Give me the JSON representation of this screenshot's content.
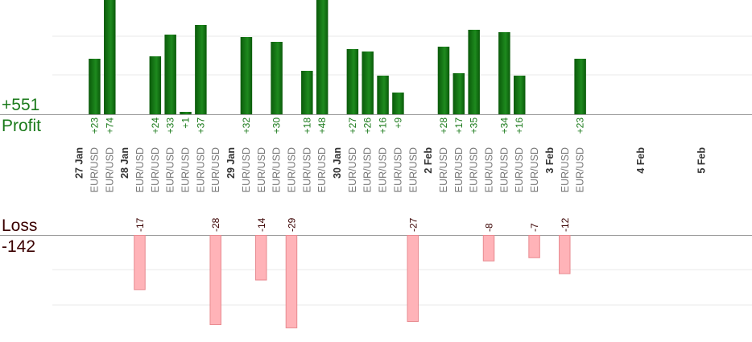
{
  "summary": {
    "profit_total": "+551",
    "profit_label": "Profit",
    "loss_label": "Loss",
    "loss_total": "-142"
  },
  "colors": {
    "profit_bar_dark": "#0a5a0a",
    "profit_bar_light": "#1e8a1e",
    "profit_text": "#1a7a1a",
    "loss_bar": "#ffb3b8",
    "loss_bar_stroke": "#e88a90",
    "loss_text": "#3a0000",
    "axis_line": "#999999",
    "grid_line": "#e8e8e8",
    "date_text": "#333333",
    "pair_text": "#777777"
  },
  "chart_data": {
    "type": "bar",
    "title": "",
    "xlabel": "",
    "ylabel": "",
    "profit_ylim": [
      0,
      60
    ],
    "loss_ylim": [
      -25,
      0
    ],
    "grid": true,
    "date_labels": [
      {
        "label": "27 Jan",
        "index": 0
      },
      {
        "label": "28 Jan",
        "index": 3
      },
      {
        "label": "29 Jan",
        "index": 10
      },
      {
        "label": "30 Jan",
        "index": 17
      },
      {
        "label": "2 Feb",
        "index": 23
      },
      {
        "label": "3 Feb",
        "index": 31
      },
      {
        "label": "4 Feb",
        "index": 37
      },
      {
        "label": "5 Feb",
        "index": 41
      }
    ],
    "trades": [
      {
        "pair": "EUR/USD",
        "value": 23,
        "label": "+23"
      },
      {
        "pair": "EUR/USD",
        "value": 74,
        "label": "+74"
      },
      {
        "pair": "EUR/USD",
        "value": -17,
        "label": "-17"
      },
      {
        "pair": "EUR/USD",
        "value": 24,
        "label": "+24"
      },
      {
        "pair": "EUR/USD",
        "value": 33,
        "label": "+33"
      },
      {
        "pair": "EUR/USD",
        "value": 1,
        "label": "+1"
      },
      {
        "pair": "EUR/USD",
        "value": 37,
        "label": "+37"
      },
      {
        "pair": "EUR/USD",
        "value": -28,
        "label": "-28"
      },
      {
        "pair": "EUR/USD",
        "value": 32,
        "label": "+32"
      },
      {
        "pair": "EUR/USD",
        "value": -14,
        "label": "-14"
      },
      {
        "pair": "EUR/USD",
        "value": 30,
        "label": "+30"
      },
      {
        "pair": "EUR/USD",
        "value": -29,
        "label": "-29"
      },
      {
        "pair": "EUR/USD",
        "value": 18,
        "label": "+18"
      },
      {
        "pair": "EUR/USD",
        "value": 48,
        "label": "+48"
      },
      {
        "pair": "EUR/USD",
        "value": 27,
        "label": "+27"
      },
      {
        "pair": "EUR/USD",
        "value": 26,
        "label": "+26"
      },
      {
        "pair": "EUR/USD",
        "value": 16,
        "label": "+16"
      },
      {
        "pair": "EUR/USD",
        "value": 9,
        "label": "+9"
      },
      {
        "pair": "EUR/USD",
        "value": -27,
        "label": "-27"
      },
      {
        "pair": "EUR/USD",
        "value": 28,
        "label": "+28"
      },
      {
        "pair": "EUR/USD",
        "value": 17,
        "label": "+17"
      },
      {
        "pair": "EUR/USD",
        "value": 35,
        "label": "+35"
      },
      {
        "pair": "EUR/USD",
        "value": -8,
        "label": "-8"
      },
      {
        "pair": "EUR/USD",
        "value": 34,
        "label": "+34"
      },
      {
        "pair": "EUR/USD",
        "value": 16,
        "label": "+16"
      },
      {
        "pair": "EUR/USD",
        "value": -7,
        "label": "-7"
      },
      {
        "pair": "EUR/USD",
        "value": -12,
        "label": "-12"
      },
      {
        "pair": "EUR/USD",
        "value": 23,
        "label": "+23"
      }
    ]
  }
}
